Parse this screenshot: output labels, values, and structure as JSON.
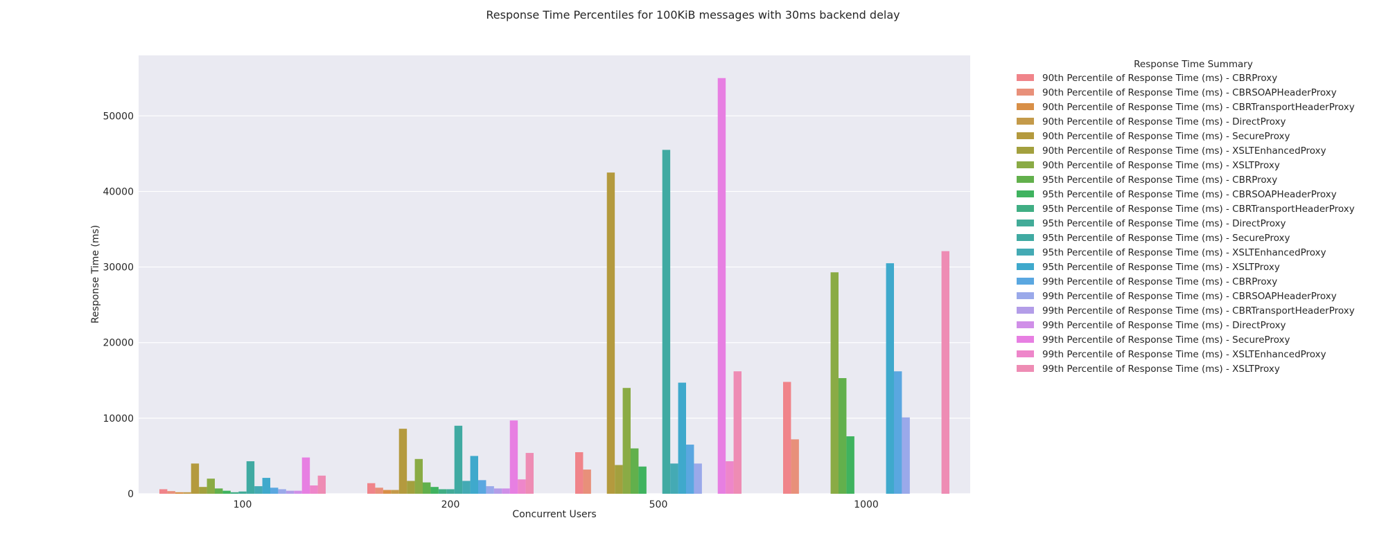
{
  "chart_data": {
    "type": "bar",
    "title": "Response Time Percentiles for 100KiB messages with 30ms backend delay",
    "xlabel": "Concurrent Users",
    "ylabel": "Response Time (ms)",
    "ylim": [
      0,
      58000
    ],
    "yticks": [
      0,
      10000,
      20000,
      30000,
      40000,
      50000
    ],
    "grid": true,
    "legend_placement": "outside-right",
    "legend_title": "Response Time Summary",
    "categories": [
      "100",
      "200",
      "500",
      "1000"
    ],
    "series": [
      {
        "name": "90th Percentile of Response Time (ms) - CBRProxy",
        "color": "#f0848a",
        "values": [
          600,
          1400,
          5500,
          14800
        ]
      },
      {
        "name": "90th Percentile of Response Time (ms) - CBRSOAPHeaderProxy",
        "color": "#e8907a",
        "values": [
          350,
          800,
          3200,
          7200
        ]
      },
      {
        "name": "90th Percentile of Response Time (ms) - CBRTransportHeaderProxy",
        "color": "#d88f47",
        "values": [
          200,
          500,
          0,
          0
        ]
      },
      {
        "name": "90th Percentile of Response Time (ms) - DirectProxy",
        "color": "#c49a4a",
        "values": [
          200,
          500,
          0,
          0
        ]
      },
      {
        "name": "90th Percentile of Response Time (ms) - SecureProxy",
        "color": "#b49a3e",
        "values": [
          4000,
          8600,
          42500,
          0
        ]
      },
      {
        "name": "90th Percentile of Response Time (ms) - XSLTEnhancedProxy",
        "color": "#a3a03e",
        "values": [
          900,
          1700,
          3800,
          0
        ]
      },
      {
        "name": "90th Percentile of Response Time (ms) - XSLTProxy",
        "color": "#8aab45",
        "values": [
          2000,
          4600,
          14000,
          29300
        ]
      },
      {
        "name": "95th Percentile of Response Time (ms) - CBRProxy",
        "color": "#62b04c",
        "values": [
          700,
          1500,
          6000,
          15300
        ]
      },
      {
        "name": "95th Percentile of Response Time (ms) - CBRSOAPHeaderProxy",
        "color": "#3fb35f",
        "values": [
          400,
          900,
          3600,
          7600
        ]
      },
      {
        "name": "95th Percentile of Response Time (ms) - CBRTransportHeaderProxy",
        "color": "#40ae84",
        "values": [
          200,
          600,
          0,
          0
        ]
      },
      {
        "name": "95th Percentile of Response Time (ms) - DirectProxy",
        "color": "#42ab98",
        "values": [
          300,
          600,
          0,
          0
        ]
      },
      {
        "name": "95th Percentile of Response Time (ms) - SecureProxy",
        "color": "#40aaa2",
        "values": [
          4300,
          9000,
          45500,
          0
        ]
      },
      {
        "name": "95th Percentile of Response Time (ms) - XSLTEnhancedProxy",
        "color": "#44aab4",
        "values": [
          1000,
          1700,
          4000,
          0
        ]
      },
      {
        "name": "95th Percentile of Response Time (ms) - XSLTProxy",
        "color": "#3fa9cc",
        "values": [
          2100,
          5000,
          14700,
          30500
        ]
      },
      {
        "name": "99th Percentile of Response Time (ms) - CBRProxy",
        "color": "#5aa7e0",
        "values": [
          800,
          1800,
          6500,
          16200
        ]
      },
      {
        "name": "99th Percentile of Response Time (ms) - CBRSOAPHeaderProxy",
        "color": "#9aa9ea",
        "values": [
          600,
          1000,
          4000,
          10100
        ]
      },
      {
        "name": "99th Percentile of Response Time (ms) - CBRTransportHeaderProxy",
        "color": "#b39de8",
        "values": [
          400,
          700,
          0,
          0
        ]
      },
      {
        "name": "99th Percentile of Response Time (ms) - DirectProxy",
        "color": "#d08fe8",
        "values": [
          400,
          700,
          0,
          0
        ]
      },
      {
        "name": "99th Percentile of Response Time (ms) - SecureProxy",
        "color": "#e77fe2",
        "values": [
          4800,
          9700,
          55000,
          0
        ]
      },
      {
        "name": "99th Percentile of Response Time (ms) - XSLTEnhancedProxy",
        "color": "#ee86ca",
        "values": [
          1100,
          1900,
          4300,
          0
        ]
      },
      {
        "name": "99th Percentile of Response Time (ms) - XSLTProxy",
        "color": "#ee8cb4",
        "values": [
          2400,
          5400,
          16200,
          32100
        ]
      }
    ]
  }
}
